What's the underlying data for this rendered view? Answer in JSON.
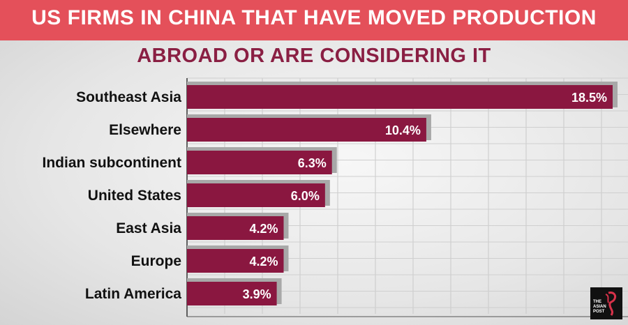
{
  "header": {
    "title": "US FIRMS IN CHINA THAT HAVE MOVED PRODUCTION",
    "subtitle": "ABROAD OR ARE CONSIDERING IT"
  },
  "colors": {
    "band": "#e4505a",
    "bar": "#8a1740",
    "bar_shadow": "#a8a8a8",
    "subtitle": "#8a1f43"
  },
  "chart_data": {
    "type": "bar",
    "orientation": "horizontal",
    "categories": [
      "Southeast Asia",
      "Elsewhere",
      "Indian subcontinent",
      "United States",
      "East Asia",
      "Europe",
      "Latin America"
    ],
    "values": [
      18.5,
      10.4,
      6.3,
      6.0,
      4.2,
      4.2,
      3.9
    ],
    "value_labels": [
      "18.5%",
      "10.4%",
      "6.3%",
      "6.0%",
      "4.2%",
      "4.2%",
      "3.9%"
    ],
    "unit": "%",
    "xlim": [
      0,
      18.5
    ],
    "grid": true,
    "legend": "none"
  },
  "logo": {
    "text": "THE ASIAN POST",
    "icon": "asian-post-logo-icon"
  }
}
